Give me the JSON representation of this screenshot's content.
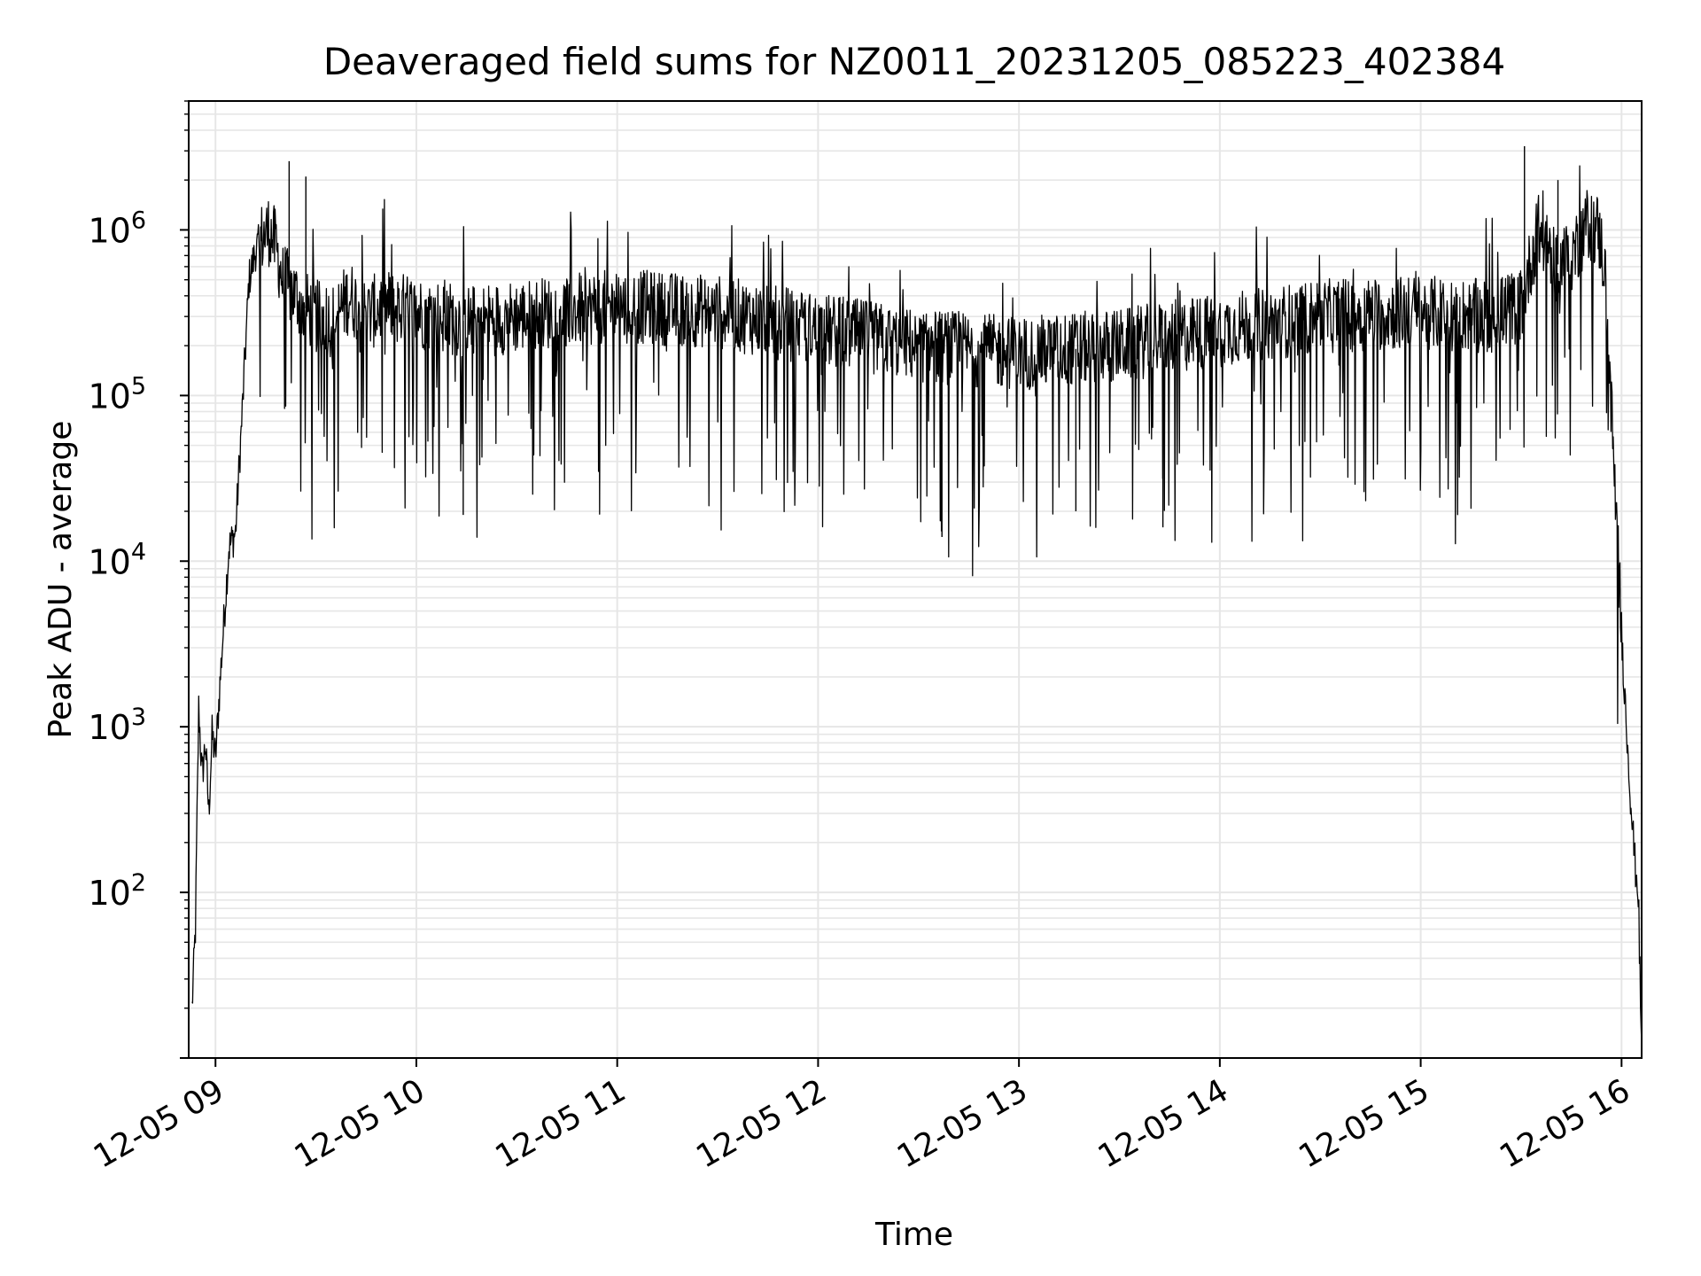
{
  "chart_data": {
    "type": "line",
    "title": "Deaveraged field sums for NZ0011_20231205_085223_402384",
    "xlabel": "Time",
    "ylabel": "Peak ADU - average",
    "yscale": "log",
    "grid": "major and minor",
    "line_color": "#000000",
    "grid_color": "#e6e6e6",
    "xlim": [
      "12-05 08:52",
      "12-05 16:06"
    ],
    "ylim": [
      10,
      6000000
    ],
    "x_ticks": [
      "12-05 09",
      "12-05 10",
      "12-05 11",
      "12-05 12",
      "12-05 13",
      "12-05 14",
      "12-05 15",
      "12-05 16"
    ],
    "y_ticks": [
      {
        "base": "10",
        "exp": "2"
      },
      {
        "base": "10",
        "exp": "3"
      },
      {
        "base": "10",
        "exp": "4"
      },
      {
        "base": "10",
        "exp": "5"
      },
      {
        "base": "10",
        "exp": "6"
      }
    ],
    "series": [
      {
        "name": "",
        "x": [
          "08:53",
          "08:54",
          "08:55",
          "08:56",
          "08:57",
          "08:58",
          "08:59",
          "09:00",
          "09:02",
          "09:04",
          "09:06",
          "09:08",
          "09:10",
          "09:12",
          "09:14",
          "09:16",
          "09:18",
          "09:20",
          "09:22",
          "09:24",
          "09:26",
          "09:30",
          "09:35",
          "09:40",
          "09:45",
          "09:50",
          "10:00",
          "10:15",
          "10:30",
          "11:00",
          "11:30",
          "12:00",
          "12:30",
          "13:00",
          "13:30",
          "14:00",
          "14:30",
          "15:00",
          "15:20",
          "15:30",
          "15:35",
          "15:40",
          "15:45",
          "15:50",
          "15:53",
          "15:55",
          "15:57",
          "15:59",
          "16:01",
          "16:03",
          "16:04",
          "16:05",
          "16:06"
        ],
        "y": [
          20,
          60,
          1300,
          500,
          800,
          300,
          900,
          650,
          3000,
          12000,
          15000,
          80000,
          500000,
          750000,
          900000,
          1000000,
          800000,
          500000,
          450000,
          400000,
          350000,
          300000,
          280000,
          400000,
          300000,
          350000,
          320000,
          280000,
          300000,
          350000,
          320000,
          250000,
          200000,
          180000,
          200000,
          250000,
          300000,
          320000,
          300000,
          350000,
          1000000,
          600000,
          700000,
          1100000,
          1000000,
          600000,
          80000,
          10000,
          1500,
          300,
          150,
          100,
          10
        ],
        "spikes": [
          {
            "x": "09:22",
            "y": 2600000
          },
          {
            "x": "09:27",
            "y": 2100000
          },
          {
            "x": "15:31",
            "y": 3200000
          },
          {
            "x": "15:41",
            "y": 2000000
          },
          {
            "x": "12:37",
            "y": 14000
          },
          {
            "x": "13:17",
            "y": 20000
          },
          {
            "x": "13:43",
            "y": 16000
          },
          {
            "x": "10:14",
            "y": 19000
          }
        ]
      }
    ]
  }
}
